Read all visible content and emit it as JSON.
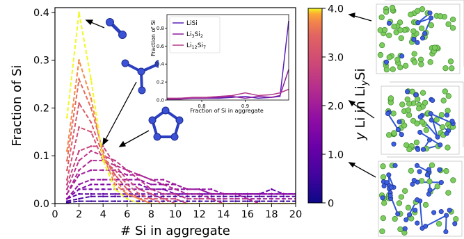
{
  "chart_data": {
    "type": "line",
    "xlabel": "# Si in aggregate",
    "ylabel": "Fraction of Si",
    "xlim": [
      0,
      20
    ],
    "ylim": [
      0,
      0.41
    ],
    "xticks": [
      "0",
      "2",
      "4",
      "6",
      "8",
      "10",
      "12",
      "14",
      "16",
      "18",
      "20"
    ],
    "yticks": [
      "0.0",
      "0.1",
      "0.2",
      "0.3",
      "0.4"
    ],
    "x": [
      1,
      2,
      3,
      4,
      5,
      6,
      7,
      8,
      9,
      10,
      11,
      12,
      13,
      14,
      15,
      16,
      17,
      18,
      19,
      20
    ],
    "line_style": "dashed",
    "series": [
      {
        "y_li": 4.0,
        "values": [
          0.18,
          0.4,
          0.26,
          0.09,
          0.03,
          0.01,
          0.0,
          0.0,
          0.0,
          0.0,
          0.0,
          0.0,
          0.0,
          0.0,
          0.0,
          0.0,
          0.0,
          0.0,
          0.0,
          0.0
        ]
      },
      {
        "y_li": 3.75,
        "values": [
          0.11,
          0.3,
          0.22,
          0.1,
          0.04,
          0.02,
          0.01,
          0.0,
          0.0,
          0.0,
          0.0,
          0.0,
          0.0,
          0.0,
          0.0,
          0.0,
          0.0,
          0.0,
          0.0,
          0.0
        ]
      },
      {
        "y_li": 3.5,
        "values": [
          0.09,
          0.26,
          0.2,
          0.11,
          0.05,
          0.02,
          0.01,
          0.0,
          0.0,
          0.0,
          0.0,
          0.0,
          0.0,
          0.0,
          0.0,
          0.0,
          0.0,
          0.0,
          0.0,
          0.0
        ]
      },
      {
        "y_li": 3.25,
        "values": [
          0.07,
          0.21,
          0.17,
          0.1,
          0.06,
          0.03,
          0.01,
          0.01,
          0.0,
          0.0,
          0.0,
          0.0,
          0.0,
          0.0,
          0.0,
          0.0,
          0.0,
          0.0,
          0.0,
          0.0
        ]
      },
      {
        "y_li": 3.0,
        "values": [
          0.05,
          0.16,
          0.15,
          0.09,
          0.07,
          0.04,
          0.02,
          0.01,
          0.01,
          0.0,
          0.0,
          0.0,
          0.0,
          0.0,
          0.0,
          0.0,
          0.0,
          0.0,
          0.0,
          0.0
        ]
      },
      {
        "y_li": 2.75,
        "values": [
          0.04,
          0.11,
          0.12,
          0.12,
          0.08,
          0.05,
          0.03,
          0.02,
          0.01,
          0.01,
          0.0,
          0.0,
          0.0,
          0.0,
          0.0,
          0.0,
          0.0,
          0.0,
          0.0,
          0.0
        ]
      },
      {
        "y_li": 2.5,
        "values": [
          0.03,
          0.09,
          0.11,
          0.1,
          0.09,
          0.07,
          0.05,
          0.03,
          0.02,
          0.02,
          0.01,
          0.01,
          0.01,
          0.0,
          0.0,
          0.0,
          0.0,
          0.0,
          0.0,
          0.0
        ]
      },
      {
        "y_li": 2.25,
        "values": [
          0.02,
          0.07,
          0.09,
          0.09,
          0.08,
          0.07,
          0.06,
          0.05,
          0.04,
          0.03,
          0.02,
          0.02,
          0.01,
          0.01,
          0.01,
          0.01,
          0.0,
          0.0,
          0.0,
          0.0
        ]
      },
      {
        "y_li": 2.0,
        "values": [
          0.02,
          0.06,
          0.07,
          0.07,
          0.07,
          0.06,
          0.06,
          0.05,
          0.05,
          0.04,
          0.03,
          0.03,
          0.02,
          0.02,
          0.02,
          0.01,
          0.01,
          0.01,
          0.01,
          0.01
        ]
      },
      {
        "y_li": 1.75,
        "values": [
          0.01,
          0.04,
          0.05,
          0.05,
          0.05,
          0.05,
          0.05,
          0.04,
          0.04,
          0.04,
          0.03,
          0.03,
          0.03,
          0.02,
          0.02,
          0.02,
          0.02,
          0.02,
          0.02,
          0.02
        ]
      },
      {
        "y_li": 1.5,
        "values": [
          0.01,
          0.03,
          0.04,
          0.04,
          0.04,
          0.04,
          0.04,
          0.03,
          0.03,
          0.03,
          0.03,
          0.03,
          0.02,
          0.02,
          0.02,
          0.02,
          0.02,
          0.02,
          0.02,
          0.02
        ]
      },
      {
        "y_li": 1.25,
        "values": [
          0.01,
          0.03,
          0.03,
          0.03,
          0.03,
          0.03,
          0.03,
          0.03,
          0.03,
          0.02,
          0.02,
          0.02,
          0.02,
          0.02,
          0.02,
          0.02,
          0.02,
          0.02,
          0.02,
          0.02
        ]
      },
      {
        "y_li": 1.0,
        "values": [
          0.01,
          0.02,
          0.02,
          0.02,
          0.02,
          0.02,
          0.02,
          0.02,
          0.02,
          0.02,
          0.02,
          0.02,
          0.02,
          0.02,
          0.02,
          0.02,
          0.02,
          0.03,
          0.02,
          0.02
        ]
      },
      {
        "y_li": 0.75,
        "values": [
          0.005,
          0.01,
          0.015,
          0.015,
          0.015,
          0.015,
          0.015,
          0.015,
          0.015,
          0.015,
          0.015,
          0.015,
          0.015,
          0.015,
          0.015,
          0.015,
          0.015,
          0.015,
          0.015,
          0.015
        ]
      },
      {
        "y_li": 0.5,
        "values": [
          0.002,
          0.005,
          0.005,
          0.005,
          0.005,
          0.005,
          0.005,
          0.005,
          0.005,
          0.005,
          0.005,
          0.005,
          0.005,
          0.005,
          0.005,
          0.005,
          0.005,
          0.005,
          0.005,
          0.005
        ]
      }
    ],
    "colorbar": {
      "label": "y Li in LiySi",
      "range": [
        0,
        4.0
      ],
      "ticks": [
        "0",
        "1.0",
        "2.0",
        "3.0",
        "4.0"
      ],
      "colormap": "plasma"
    },
    "inset": {
      "type": "line",
      "xlabel": "Fraction of Si in aggregate",
      "ylabel": "Fraction of Si",
      "xlim": [
        0.72,
        1.0
      ],
      "ylim": [
        0,
        0.95
      ],
      "xticks": [
        "0.8",
        "0.9"
      ],
      "yticks": [
        "0.0",
        "0.2",
        "0.4",
        "0.6",
        "0.8"
      ],
      "legend_position": "top-left",
      "x": [
        0.72,
        0.75,
        0.78,
        0.81,
        0.84,
        0.87,
        0.9,
        0.93,
        0.96,
        0.98,
        1.0
      ],
      "series": [
        {
          "name": "LiSi",
          "color": "#5a1eb8",
          "values": [
            0.01,
            0.02,
            0.02,
            0.02,
            0.02,
            0.03,
            0.04,
            0.02,
            0.03,
            0.04,
            0.88
          ]
        },
        {
          "name": "Li3Si2",
          "color": "#8b1a9e",
          "values": [
            0.01,
            0.01,
            0.02,
            0.02,
            0.03,
            0.04,
            0.02,
            0.04,
            0.03,
            0.05,
            0.34
          ]
        },
        {
          "name": "Li12Si7",
          "color": "#b23a8c",
          "values": [
            0.02,
            0.02,
            0.03,
            0.03,
            0.04,
            0.05,
            0.08,
            0.05,
            0.06,
            0.08,
            0.12
          ]
        }
      ]
    }
  }
}
